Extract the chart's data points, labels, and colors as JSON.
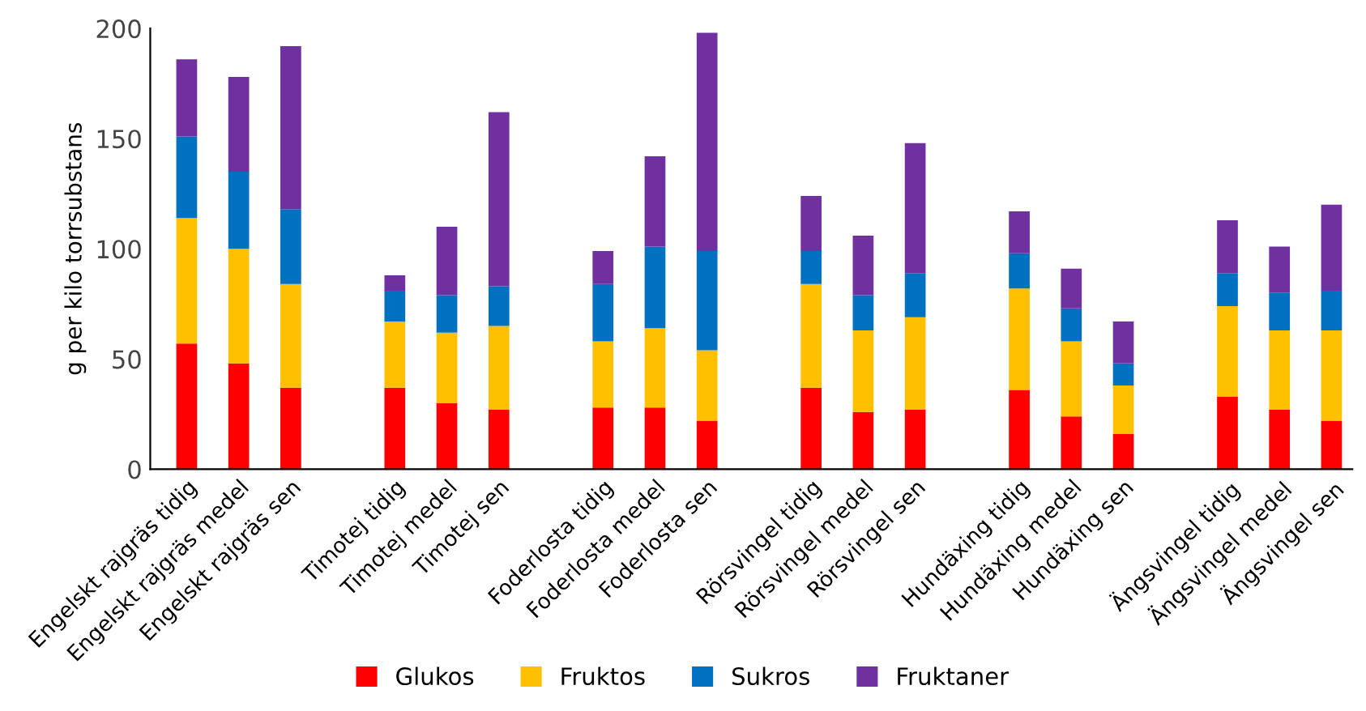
{
  "chart_data": {
    "type": "bar",
    "stacked": true,
    "ylabel": "g per kilo torrsubstans",
    "categories": [
      "Engelskt rajgräs tidig",
      "Engelskt rajgräs medel",
      "Engelskt rajgräs sen",
      null,
      "Timotej tidig",
      "Timotej medel",
      "Timotej sen",
      null,
      "Foderlosta tidig",
      "Foderlosta medel",
      "Foderlosta sen",
      null,
      "Rörsvingel tidig",
      "Rörsvingel medel",
      "Rörsvingel sen",
      null,
      "Hundäxing tidig",
      "Hundäxing medel",
      "Hundäxing sen",
      null,
      "Ängsvingel tidig",
      "Ängsvingel medel",
      "Ängsvingel sen"
    ],
    "series": [
      {
        "name": "Glukos",
        "color": "#ff0000",
        "values": [
          57,
          48,
          37,
          null,
          37,
          30,
          27,
          null,
          28,
          28,
          22,
          null,
          37,
          26,
          27,
          null,
          36,
          24,
          16,
          null,
          33,
          27,
          22
        ]
      },
      {
        "name": "Fruktos",
        "color": "#ffc000",
        "values": [
          57,
          52,
          47,
          null,
          30,
          32,
          38,
          null,
          30,
          36,
          32,
          null,
          47,
          37,
          42,
          null,
          46,
          34,
          22,
          null,
          41,
          36,
          41
        ]
      },
      {
        "name": "Sukros",
        "color": "#0070c0",
        "values": [
          37,
          35,
          34,
          null,
          14,
          17,
          18,
          null,
          26,
          37,
          45,
          null,
          15,
          16,
          20,
          null,
          16,
          15,
          10,
          null,
          15,
          17,
          18
        ]
      },
      {
        "name": "Fruktaner",
        "color": "#7030a0",
        "values": [
          35,
          43,
          74,
          null,
          7,
          31,
          79,
          null,
          15,
          41,
          99,
          null,
          25,
          27,
          59,
          null,
          19,
          18,
          19,
          null,
          24,
          21,
          39
        ]
      }
    ],
    "ylim": [
      0,
      200
    ],
    "yticks": [
      0,
      50,
      100,
      150,
      200
    ],
    "grid": false,
    "legend": "bottom"
  }
}
